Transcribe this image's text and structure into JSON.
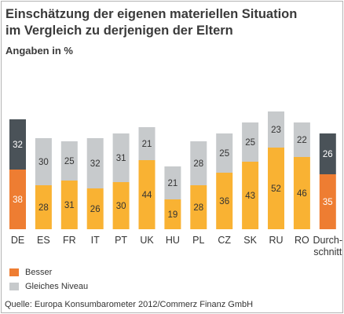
{
  "title_line1": "Einschätzung der eigenen materiellen Situation",
  "title_line2": "im Vergleich zu derjenigen der Eltern",
  "subtitle": "Angaben in %",
  "source": "Quelle: Europa Konsumbarometer 2012/Commerz Finanz GmbH",
  "colors": {
    "besser": "#f9b233",
    "besser_highlight": "#ee7d32",
    "gleiches_niveau": "#c7cacc",
    "gleiches_niveau_highlight": "#4a5258"
  },
  "chart_data": {
    "type": "bar",
    "stacked": true,
    "title": "Einschätzung der eigenen materiellen Situation im Vergleich zu derjenigen der Eltern",
    "subtitle": "Angaben in %",
    "categories": [
      "DE",
      "ES",
      "FR",
      "IT",
      "PT",
      "UK",
      "HU",
      "PL",
      "CZ",
      "SK",
      "RU",
      "RO",
      "Durch-\nschnitt"
    ],
    "series": [
      {
        "name": "Besser",
        "values": [
          38,
          28,
          31,
          26,
          30,
          44,
          19,
          28,
          36,
          43,
          52,
          46,
          35
        ]
      },
      {
        "name": "Gleiches Niveau",
        "values": [
          32,
          30,
          25,
          32,
          31,
          21,
          21,
          28,
          25,
          25,
          23,
          22,
          26
        ]
      }
    ],
    "highlighted_categories": [
      "DE",
      "Durch-\nschnitt"
    ],
    "ylim": [
      0,
      80
    ],
    "grid": false,
    "legend": "bottom-left"
  },
  "legend": [
    {
      "label": "Besser"
    },
    {
      "label": "Gleiches Niveau"
    }
  ]
}
